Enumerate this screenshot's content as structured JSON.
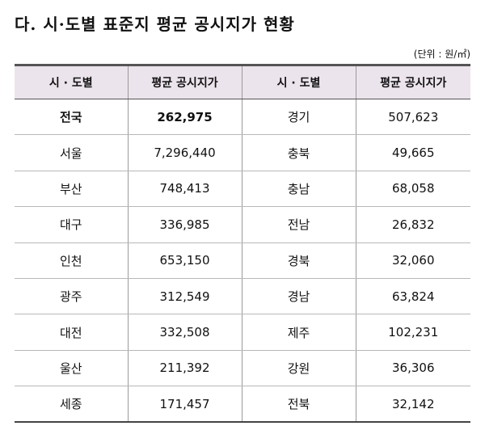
{
  "title": "다. 시·도별 표준지 평균 공시지가 현황",
  "unit": "(단위 : 원/㎡)",
  "headers": [
    "시 · 도별",
    "평균 공시지가",
    "시 · 도별",
    "평균 공시지가"
  ],
  "rows": [
    {
      "region_left": "전국",
      "price_left": "262,975",
      "region_right": "경기",
      "price_right": "507,623"
    },
    {
      "region_left": "서울",
      "price_left": "7,296,440",
      "region_right": "충북",
      "price_right": "49,665"
    },
    {
      "region_left": "부산",
      "price_left": "748,413",
      "region_right": "충남",
      "price_right": "68,058"
    },
    {
      "region_left": "대구",
      "price_left": "336,985",
      "region_right": "전남",
      "price_right": "26,832"
    },
    {
      "region_left": "인천",
      "price_left": "653,150",
      "region_right": "경북",
      "price_right": "32,060"
    },
    {
      "region_left": "광주",
      "price_left": "312,549",
      "region_right": "경남",
      "price_right": "63,824"
    },
    {
      "region_left": "대전",
      "price_left": "332,508",
      "region_right": "제주",
      "price_right": "102,231"
    },
    {
      "region_left": "울산",
      "price_left": "211,392",
      "region_right": "강원",
      "price_right": "36,306"
    },
    {
      "region_left": "세종",
      "price_left": "171,457",
      "region_right": "전북",
      "price_right": "32,142"
    }
  ]
}
